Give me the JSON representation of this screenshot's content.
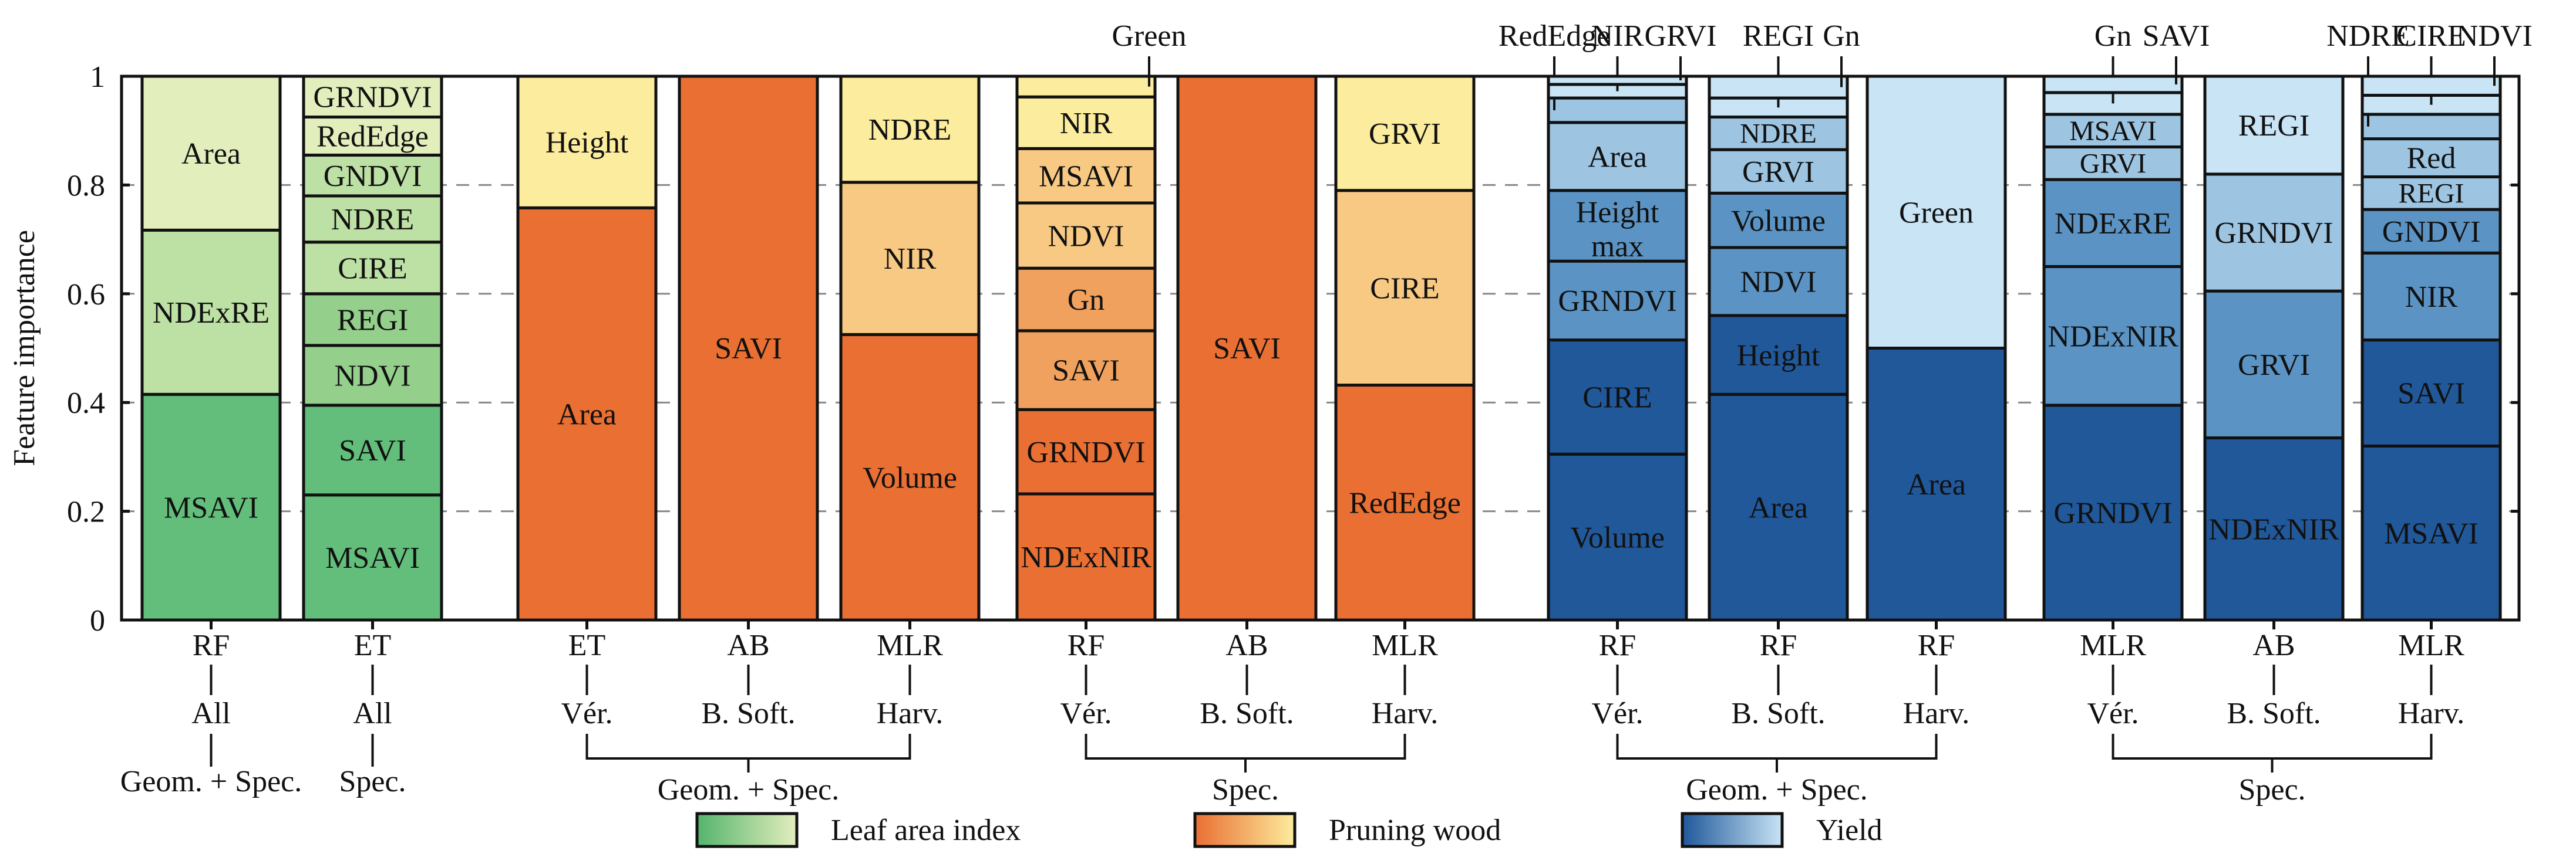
{
  "chart_data": {
    "type": "stacked-bar",
    "ylabel": "Feature importance",
    "ylim": [
      0,
      1
    ],
    "yticks": [
      0,
      0.2,
      0.4,
      0.6,
      0.8,
      1
    ],
    "yticklabels": [
      "0",
      "0.2",
      "0.4",
      "0.6",
      "0.8",
      "1"
    ],
    "colors": {
      "green": [
        "#62be7a",
        "#94cf8c",
        "#bde0a4",
        "#e3eebd"
      ],
      "orange": [
        "#e96f33",
        "#f0a15e",
        "#f8c983",
        "#fcec9d"
      ],
      "blue": [
        "#20589a",
        "#5b94c4",
        "#9dc5e2",
        "#c8e4f5"
      ]
    },
    "bars": [
      {
        "model": "RF",
        "target": "All",
        "group": "Geom. + Spec.",
        "palette": "green",
        "segments": [
          {
            "name": "MSAVI",
            "value": 0.415
          },
          {
            "name": "NDExRE",
            "value": 0.302
          },
          {
            "name": "Area",
            "value": 0.283
          }
        ]
      },
      {
        "model": "ET",
        "target": "All",
        "group": "Spec.",
        "palette": "green",
        "segments": [
          {
            "name": "MSAVI",
            "value": 0.23
          },
          {
            "name": "SAVI",
            "value": 0.165
          },
          {
            "name": "NDVI",
            "value": 0.11
          },
          {
            "name": "REGI",
            "value": 0.095
          },
          {
            "name": "CIRE",
            "value": 0.095
          },
          {
            "name": "NDRE",
            "value": 0.085
          },
          {
            "name": "GNDVI",
            "value": 0.075
          },
          {
            "name": "RedEdge",
            "value": 0.07
          },
          {
            "name": "GRNDVI",
            "value": 0.075
          }
        ]
      },
      {
        "model": "ET",
        "target": "Vér.",
        "palette": "orange",
        "segments": [
          {
            "name": "Area",
            "value": 0.758
          },
          {
            "name": "Height",
            "value": 0.242
          }
        ]
      },
      {
        "model": "AB",
        "target": "B. Soft.",
        "palette": "orange",
        "segments": [
          {
            "name": "SAVI",
            "value": 1.0
          }
        ]
      },
      {
        "model": "MLR",
        "target": "Harv.",
        "palette": "orange",
        "segments": [
          {
            "name": "Volume",
            "value": 0.525
          },
          {
            "name": "NIR",
            "value": 0.28
          },
          {
            "name": "NDRE",
            "value": 0.195
          }
        ]
      },
      {
        "model": "RF",
        "target": "Vér.",
        "palette": "orange",
        "segments": [
          {
            "name": "NDExNIR",
            "value": 0.232
          },
          {
            "name": "GRNDVI",
            "value": 0.155
          },
          {
            "name": "SAVI",
            "value": 0.145
          },
          {
            "name": "Gn",
            "value": 0.115
          },
          {
            "name": "NDVI",
            "value": 0.12
          },
          {
            "name": "MSAVI",
            "value": 0.1
          },
          {
            "name": "NIR",
            "value": 0.095
          },
          {
            "name": "Green",
            "value": 0.038
          }
        ]
      },
      {
        "model": "AB",
        "target": "B. Soft.",
        "palette": "orange",
        "segments": [
          {
            "name": "SAVI",
            "value": 1.0
          }
        ]
      },
      {
        "model": "MLR",
        "target": "Harv.",
        "palette": "orange",
        "segments": [
          {
            "name": "RedEdge",
            "value": 0.432
          },
          {
            "name": "CIRE",
            "value": 0.358
          },
          {
            "name": "GRVI",
            "value": 0.21
          }
        ]
      },
      {
        "model": "RF",
        "target": "Vér.",
        "palette": "blue",
        "segments": [
          {
            "name": "Volume",
            "value": 0.305
          },
          {
            "name": "CIRE",
            "value": 0.21
          },
          {
            "name": "GRNDVI",
            "value": 0.145
          },
          {
            "name": "Height max",
            "value": 0.13
          },
          {
            "name": "Area",
            "value": 0.125
          },
          {
            "name": "RedEdge",
            "value": 0.045
          },
          {
            "name": "NIR",
            "value": 0.025
          },
          {
            "name": "GRVI",
            "value": 0.015
          }
        ]
      },
      {
        "model": "RF",
        "target": "B. Soft.",
        "palette": "blue",
        "segments": [
          {
            "name": "Area",
            "value": 0.415
          },
          {
            "name": "Height",
            "value": 0.145
          },
          {
            "name": "NDVI",
            "value": 0.125
          },
          {
            "name": "Volume",
            "value": 0.1
          },
          {
            "name": "GRVI",
            "value": 0.08
          },
          {
            "name": "NDRE",
            "value": 0.06
          },
          {
            "name": "REGI",
            "value": 0.035
          },
          {
            "name": "Gn",
            "value": 0.04
          }
        ]
      },
      {
        "model": "RF",
        "target": "Harv.",
        "palette": "blue",
        "segments": [
          {
            "name": "Area",
            "value": 0.5
          },
          {
            "name": "Green",
            "value": 0.5
          }
        ]
      },
      {
        "model": "MLR",
        "target": "Vér.",
        "palette": "blue",
        "segments": [
          {
            "name": "GRNDVI",
            "value": 0.395
          },
          {
            "name": "NDExNIR",
            "value": 0.255
          },
          {
            "name": "NDExRE",
            "value": 0.16
          },
          {
            "name": "GRVI",
            "value": 0.06
          },
          {
            "name": "MSAVI",
            "value": 0.06
          },
          {
            "name": "Gn",
            "value": 0.04
          },
          {
            "name": "SAVI",
            "value": 0.03
          }
        ]
      },
      {
        "model": "AB",
        "target": "B. Soft.",
        "palette": "blue",
        "segments": [
          {
            "name": "NDExNIR",
            "value": 0.335
          },
          {
            "name": "GRVI",
            "value": 0.27
          },
          {
            "name": "GRNDVI",
            "value": 0.215
          },
          {
            "name": "REGI",
            "value": 0.18
          }
        ]
      },
      {
        "model": "MLR",
        "target": "Harv.",
        "palette": "blue",
        "segments": [
          {
            "name": "MSAVI",
            "value": 0.32
          },
          {
            "name": "SAVI",
            "value": 0.195
          },
          {
            "name": "NIR",
            "value": 0.16
          },
          {
            "name": "GNDVI",
            "value": 0.08
          },
          {
            "name": "REGI",
            "value": 0.06
          },
          {
            "name": "Red",
            "value": 0.07
          },
          {
            "name": "NDRE",
            "value": 0.045
          },
          {
            "name": "CIRE",
            "value": 0.035
          },
          {
            "name": "NDVI",
            "value": 0.035
          }
        ]
      }
    ],
    "groups": [
      {
        "label": "Geom. + Spec."
      },
      {
        "label": "Spec."
      },
      {
        "label": "Geom. + Spec."
      },
      {
        "label": "Spec."
      }
    ],
    "legend": [
      {
        "label": "Leaf area index",
        "palette": "green"
      },
      {
        "label": "Pruning wood",
        "palette": "orange"
      },
      {
        "label": "Yield",
        "palette": "blue"
      }
    ]
  }
}
